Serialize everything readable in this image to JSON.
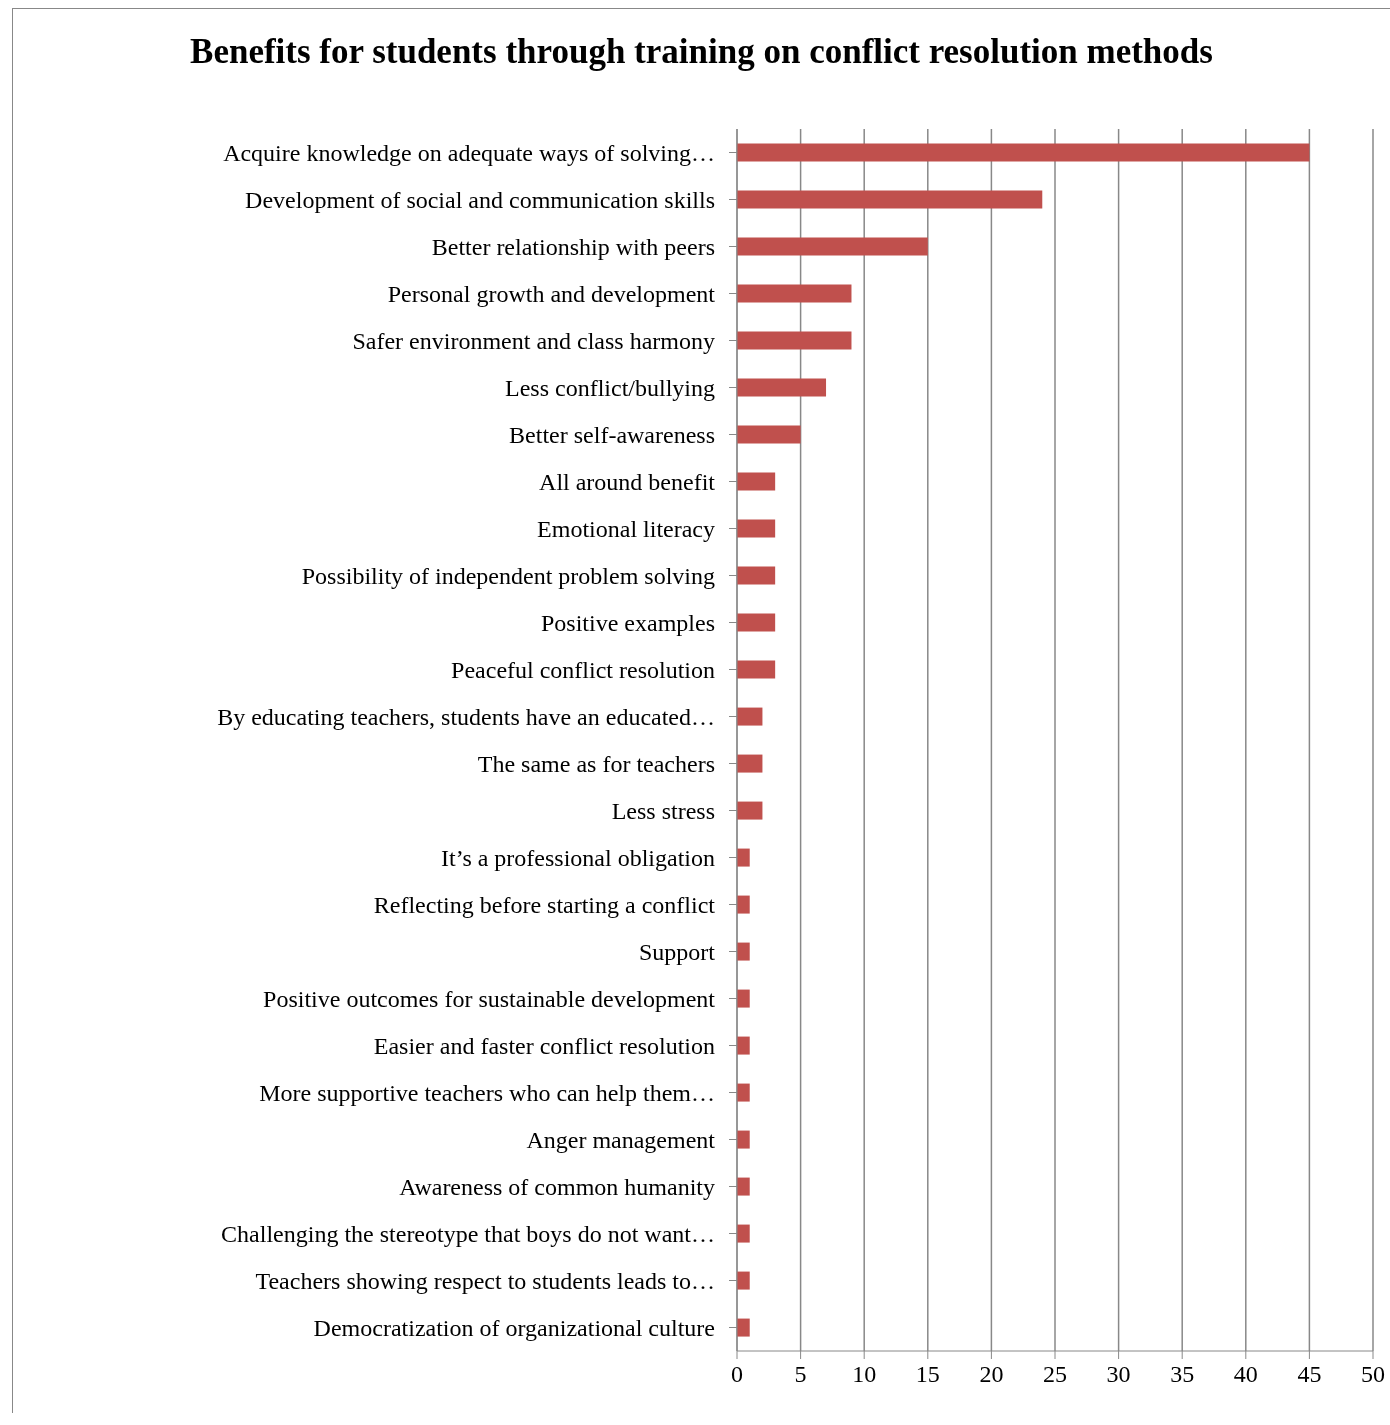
{
  "chart_data": {
    "type": "bar",
    "orientation": "horizontal",
    "title": "Benefits for students through training on conflict resolution methods",
    "categories": [
      "Acquire knowledge on adequate ways of solving…",
      "Development of social and communication skills",
      "Better relationship with peers",
      "Personal growth and development",
      "Safer environment and class harmony",
      "Less conflict/bullying",
      "Better self-awareness",
      "All around benefit",
      "Emotional literacy",
      "Possibility of independent problem solving",
      "Positive examples",
      "Peaceful conflict resolution",
      "By educating teachers, students have an educated…",
      "The same as for teachers",
      "Less stress",
      "It’s a professional obligation",
      "Reflecting before starting a conflict",
      "Support",
      "Positive outcomes for sustainable development",
      "Easier and faster conflict resolution",
      "More supportive teachers who can help them…",
      "Anger management",
      "Awareness of common humanity",
      "Challenging the stereotype that boys do not want…",
      "Teachers showing respect to students leads to…",
      "Democratization of organizational culture"
    ],
    "values": [
      45,
      24,
      15,
      9,
      9,
      7,
      5,
      3,
      3,
      3,
      3,
      3,
      2,
      2,
      2,
      1,
      1,
      1,
      1,
      1,
      1,
      1,
      1,
      1,
      1,
      1
    ],
    "color": "#c0504d",
    "xlim": [
      0,
      50
    ],
    "xticks": [
      0,
      5,
      10,
      15,
      20,
      25,
      30,
      35,
      40,
      45,
      50
    ],
    "grid": "x"
  }
}
